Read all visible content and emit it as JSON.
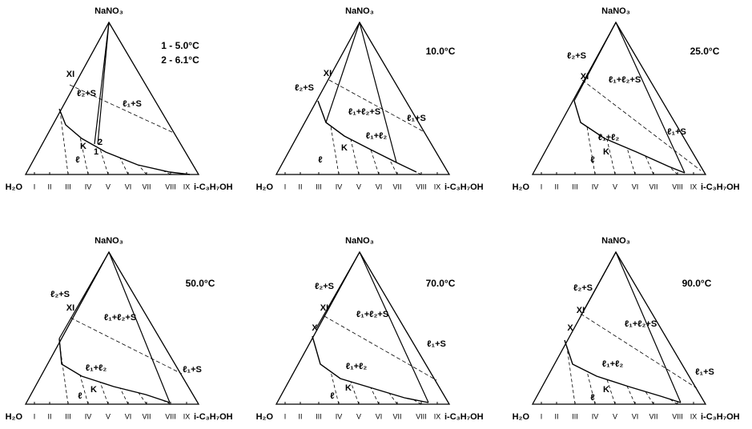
{
  "panels": [
    {
      "top": "NaNO₃",
      "left": "H₂O",
      "right": "i-C₃H₇OH",
      "title_lines": [
        "1 - 5.0°C",
        "2 - 6.1°C"
      ],
      "ticks": [
        "I",
        "II",
        "III",
        "IV",
        "V",
        "VI",
        "VII",
        "VIII",
        "IX"
      ],
      "labels": [
        "XI",
        "ℓ₂+S",
        "ℓ₁+S",
        "K",
        "2",
        "1",
        "ℓ"
      ]
    },
    {
      "top": "NaNO₃",
      "left": "H₂O",
      "right": "i-C₃H₇OH",
      "title_lines": [
        "10.0°C"
      ],
      "ticks": [
        "I",
        "II",
        "III",
        "IV",
        "V",
        "VI",
        "VII",
        "VIII",
        "IX"
      ],
      "labels": [
        "XI",
        "ℓ₂+S",
        "ℓ₁+ℓ₂+S",
        "ℓ₁+S",
        "ℓ₁+ℓ₂",
        "K",
        "ℓ"
      ]
    },
    {
      "top": "NaNO₃",
      "left": "H₂O",
      "right": "i-C₃H₇OH",
      "title_lines": [
        "25.0°C"
      ],
      "ticks": [
        "I",
        "II",
        "III",
        "IV",
        "V",
        "VI",
        "VII",
        "VIII",
        "IX"
      ],
      "labels": [
        "ℓ₂+S",
        "XI",
        "ℓ₁+ℓ₂+S",
        "ℓ₁+S",
        "ℓ₁+ℓ₂",
        "K",
        "ℓ"
      ]
    },
    {
      "top": "NaNO₃",
      "left": "H₂O",
      "right": "i-C₃H₇OH",
      "title_lines": [
        "50.0°C"
      ],
      "ticks": [
        "I",
        "II",
        "III",
        "IV",
        "V",
        "VI",
        "VII",
        "VIII",
        "IX"
      ],
      "labels": [
        "ℓ₂+S",
        "XI",
        "ℓ₁+ℓ₂+S",
        "ℓ₁+S",
        "ℓ₁+ℓ₂",
        "K",
        "ℓ"
      ]
    },
    {
      "top": "NaNO₃",
      "left": "H₂O",
      "right": "i-C₃H₇OH",
      "title_lines": [
        "70.0°C"
      ],
      "ticks": [
        "I",
        "II",
        "III",
        "IV",
        "V",
        "VI",
        "VII",
        "VIII",
        "IX"
      ],
      "labels": [
        "ℓ₂+S",
        "XI",
        "X",
        "ℓ₁+ℓ₂+S",
        "ℓ₁+S",
        "ℓ₁+ℓ₂",
        "K",
        "ℓ"
      ]
    },
    {
      "top": "NaNO₃",
      "left": "H₂O",
      "right": "i-C₃H₇OH",
      "title_lines": [
        "90.0°C"
      ],
      "ticks": [
        "I",
        "II",
        "III",
        "IV",
        "V",
        "VI",
        "VII",
        "VIII",
        "IX"
      ],
      "labels": [
        "ℓ₂+S",
        "XI",
        "X",
        "ℓ₁+ℓ₂+S",
        "ℓ₁+S",
        "ℓ₁+ℓ₂",
        "K",
        "ℓ"
      ]
    }
  ]
}
